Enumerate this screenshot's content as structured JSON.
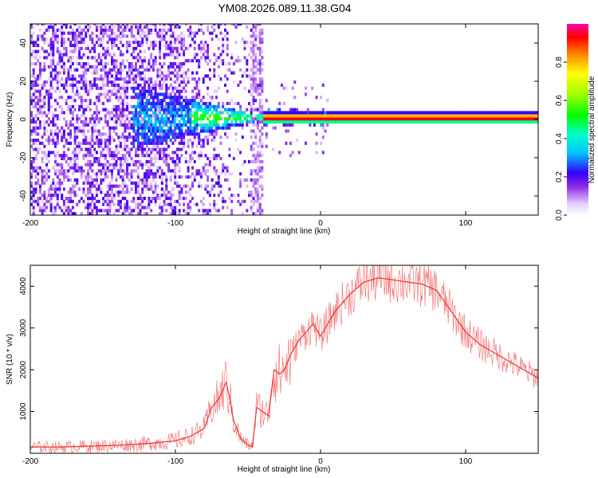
{
  "title": "YM08.2026.089.11.38.G04",
  "chart_data": [
    {
      "type": "heatmap",
      "title": "YM08.2026.089.11.38.G04",
      "xlabel": "Height of straight line (km)",
      "ylabel": "Frequency (Hz)",
      "xlim": [
        -200,
        150
      ],
      "ylim": [
        -50,
        50
      ],
      "x_ticks": [
        -200,
        -100,
        0,
        100
      ],
      "y_ticks": [
        -40,
        -20,
        0,
        20,
        40
      ],
      "features": {
        "noise_region_x": [
          -200,
          -40
        ],
        "constant_line_frequency_hz": 1,
        "strong_signal_start_x": -40
      },
      "colorbar": {
        "label": "Normalized spectral amplitude",
        "range": [
          0.0,
          1.0
        ],
        "ticks": [
          0.0,
          0.2,
          0.4,
          0.6,
          0.8
        ]
      }
    },
    {
      "type": "line",
      "xlabel": "Height of straight line (km)",
      "ylabel": "SNR (10 * v/v)",
      "xlim": [
        -200,
        150
      ],
      "ylim": [
        0,
        4500
      ],
      "x_ticks": [
        -200,
        -100,
        0,
        100
      ],
      "y_ticks": [
        1000,
        2000,
        3000,
        4000
      ],
      "color": "#ee3333",
      "series": [
        {
          "name": "SNR",
          "x": [
            -200,
            -180,
            -160,
            -140,
            -120,
            -100,
            -90,
            -80,
            -75,
            -70,
            -65,
            -62,
            -60,
            -55,
            -50,
            -47,
            -44,
            -40,
            -36,
            -32,
            -28,
            -25,
            -20,
            -15,
            -10,
            -5,
            0,
            10,
            20,
            30,
            40,
            50,
            60,
            70,
            80,
            90,
            100,
            110,
            120,
            130,
            140,
            150
          ],
          "y": [
            150,
            150,
            170,
            190,
            230,
            300,
            400,
            600,
            1100,
            1300,
            1700,
            1200,
            800,
            350,
            200,
            150,
            1100,
            1000,
            900,
            2000,
            1900,
            2000,
            2400,
            2700,
            2900,
            3100,
            2800,
            3400,
            3800,
            4100,
            4200,
            4150,
            4100,
            4050,
            3900,
            3400,
            2900,
            2600,
            2400,
            2200,
            2000,
            1800
          ]
        }
      ]
    }
  ]
}
